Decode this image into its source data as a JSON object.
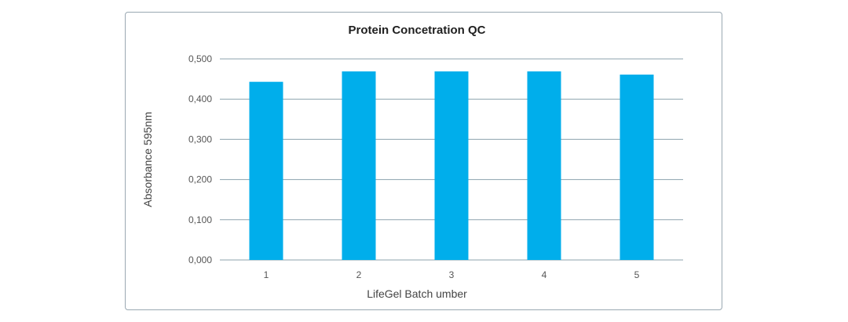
{
  "chart_data": {
    "type": "bar",
    "title": "Protein Concetration QC",
    "xlabel": "LifeGel Batch umber",
    "ylabel": "Absorbance 595nm",
    "categories": [
      "1",
      "2",
      "3",
      "4",
      "5"
    ],
    "values": [
      0.443,
      0.469,
      0.469,
      0.469,
      0.461
    ],
    "ylim": [
      0,
      0.5
    ],
    "yticks": [
      0,
      0.1,
      0.2,
      0.3,
      0.4,
      0.5
    ],
    "ytick_labels": [
      "0,000",
      "0,100",
      "0,200",
      "0,300",
      "0,400",
      "0,500"
    ],
    "grid": true,
    "legend": "none",
    "bar_color": "#00aeeb",
    "grid_color": "#8da3ae"
  }
}
